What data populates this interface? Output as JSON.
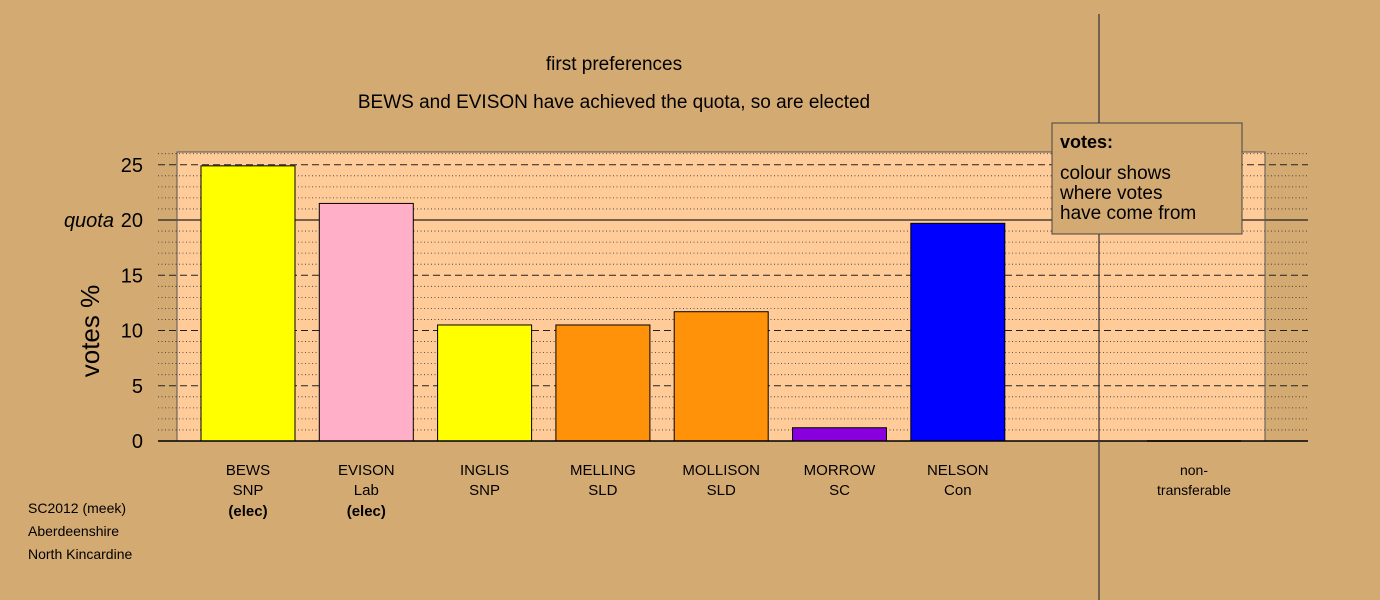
{
  "chart_data": {
    "type": "bar",
    "title": "first preferences",
    "subtitle": "BEWS and EVISON have achieved the quota, so are elected",
    "ylabel": "votes %",
    "ylim": [
      0,
      25
    ],
    "yticks": [
      0,
      5,
      10,
      15,
      20,
      25
    ],
    "quota": 20,
    "quota_label": "quota",
    "categories": [
      {
        "name": "BEWS",
        "party": "SNP",
        "status": "(elec)",
        "value": 24.9,
        "color": "#ffff00"
      },
      {
        "name": "EVISON",
        "party": "Lab",
        "status": "(elec)",
        "value": 21.5,
        "color": "#ffb0c8"
      },
      {
        "name": "INGLIS",
        "party": "SNP",
        "status": "",
        "value": 10.5,
        "color": "#ffff00"
      },
      {
        "name": "MELLING",
        "party": "SLD",
        "status": "",
        "value": 10.5,
        "color": "#ff9208"
      },
      {
        "name": "MOLLISON",
        "party": "SLD",
        "status": "",
        "value": 11.7,
        "color": "#ff9208"
      },
      {
        "name": "MORROW",
        "party": "SC",
        "status": "",
        "value": 1.2,
        "color": "#8800dd"
      },
      {
        "name": "NELSON",
        "party": "Con",
        "status": "",
        "value": 19.7,
        "color": "#0000ff"
      }
    ],
    "nontransferable": {
      "label_line1": "non-",
      "label_line2": "transferable",
      "value": 0
    },
    "legend": {
      "title": "votes:",
      "lines": [
        "colour shows",
        "where votes",
        "have come from"
      ],
      "placement": "top-right"
    },
    "colors": {
      "background": "#d4aa73",
      "plot_background": "#ffcc99",
      "grid": "#333333"
    }
  },
  "footer": {
    "lines": [
      "SC2012 (meek)",
      "Aberdeenshire",
      "North Kincardine"
    ]
  }
}
